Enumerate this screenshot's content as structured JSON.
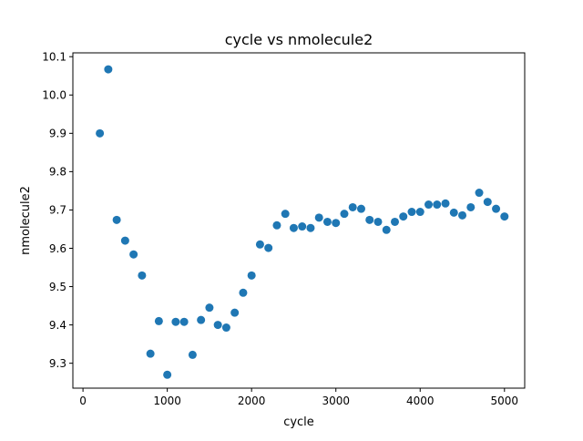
{
  "chart_data": {
    "type": "scatter",
    "title": "cycle vs nmolecule2",
    "xlabel": "cycle",
    "ylabel": "nmolecule2",
    "xlim": [
      -120,
      5240
    ],
    "ylim": [
      9.235,
      10.11
    ],
    "xticks": [
      0,
      1000,
      2000,
      3000,
      4000,
      5000
    ],
    "xtick_labels": [
      "0",
      "1000",
      "2000",
      "3000",
      "4000",
      "5000"
    ],
    "yticks": [
      9.3,
      9.4,
      9.5,
      9.6,
      9.7,
      9.8,
      9.9,
      10.0,
      10.1
    ],
    "ytick_labels": [
      "9.3",
      "9.4",
      "9.5",
      "9.6",
      "9.7",
      "9.8",
      "9.9",
      "10.0",
      "10.1"
    ],
    "grid": false,
    "marker_color": "#1f77b4",
    "x": [
      200,
      300,
      400,
      500,
      600,
      700,
      800,
      900,
      1000,
      1100,
      1200,
      1300,
      1400,
      1500,
      1600,
      1700,
      1800,
      1900,
      2000,
      2100,
      2200,
      2300,
      2400,
      2500,
      2600,
      2700,
      2800,
      2900,
      3000,
      3100,
      3200,
      3300,
      3400,
      3500,
      3600,
      3700,
      3800,
      3900,
      4000,
      4100,
      4200,
      4300,
      4400,
      4500,
      4600,
      4700,
      4800,
      4900,
      5000
    ],
    "y": [
      9.9,
      10.067,
      9.674,
      9.62,
      9.584,
      9.529,
      9.325,
      9.41,
      9.27,
      9.408,
      9.408,
      9.322,
      9.413,
      9.445,
      9.4,
      9.393,
      9.432,
      9.484,
      9.529,
      9.61,
      9.601,
      9.66,
      9.69,
      9.653,
      9.657,
      9.653,
      9.68,
      9.669,
      9.666,
      9.69,
      9.707,
      9.703,
      9.674,
      9.669,
      9.648,
      9.669,
      9.683,
      9.695,
      9.695,
      9.714,
      9.714,
      9.717,
      9.693,
      9.686,
      9.707,
      9.745,
      9.721,
      9.703,
      9.683
    ]
  }
}
